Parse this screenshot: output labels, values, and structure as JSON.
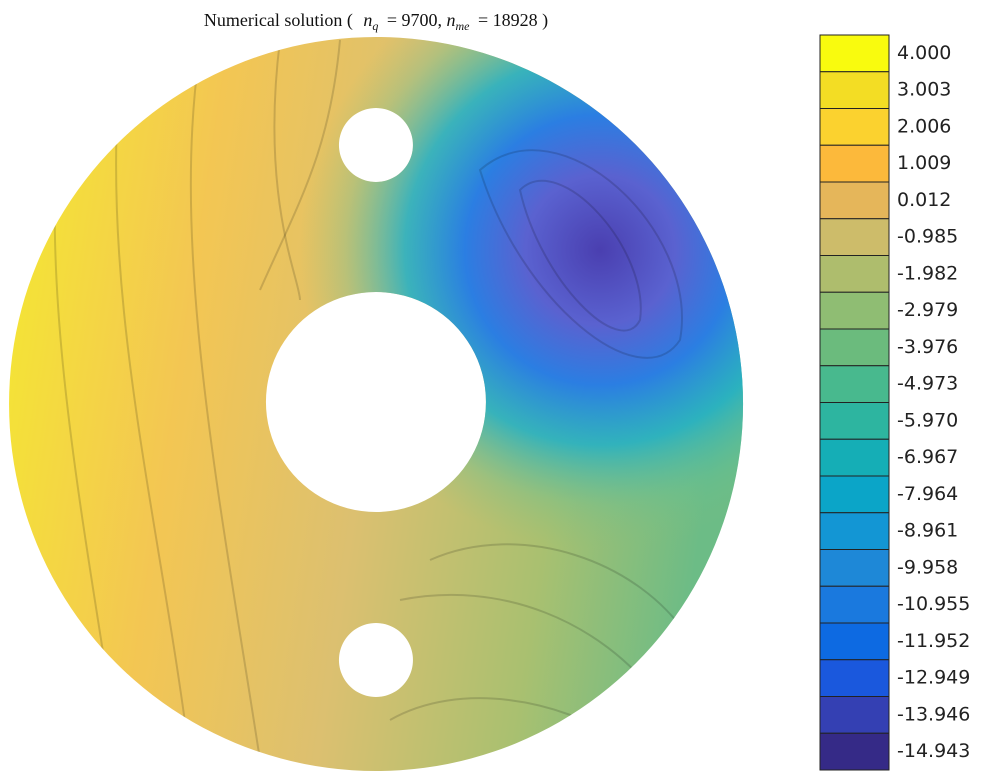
{
  "chart_data": {
    "type": "contour",
    "title_parts": [
      "Numerical solution (",
      "n",
      "q",
      "= 9700,",
      "n",
      "me",
      "= 18928 )"
    ],
    "colorbar": {
      "ticks": [
        {
          "value": 4.0,
          "label": "4.000"
        },
        {
          "value": 3.003,
          "label": "3.003"
        },
        {
          "value": 2.006,
          "label": "2.006"
        },
        {
          "value": 1.009,
          "label": "1.009"
        },
        {
          "value": 0.012,
          "label": "0.012"
        },
        {
          "value": -0.985,
          "label": "-0.985"
        },
        {
          "value": -1.982,
          "label": "-1.982"
        },
        {
          "value": -2.979,
          "label": "-2.979"
        },
        {
          "value": -3.976,
          "label": "-3.976"
        },
        {
          "value": -4.973,
          "label": "-4.973"
        },
        {
          "value": -5.97,
          "label": "-5.970"
        },
        {
          "value": -6.967,
          "label": "-6.967"
        },
        {
          "value": -7.964,
          "label": "-7.964"
        },
        {
          "value": -8.961,
          "label": "-8.961"
        },
        {
          "value": -9.958,
          "label": "-9.958"
        },
        {
          "value": -10.955,
          "label": "-10.955"
        },
        {
          "value": -11.952,
          "label": "-11.952"
        },
        {
          "value": -12.949,
          "label": "-12.949"
        },
        {
          "value": -13.946,
          "label": "-13.946"
        },
        {
          "value": -14.943,
          "label": "-14.943"
        }
      ],
      "colors": [
        "#f9fb0e",
        "#f3dd24",
        "#fbd22f",
        "#fcb93b",
        "#e5b65a",
        "#cdbc6a",
        "#aebd6d",
        "#8fbd73",
        "#6bbb7d",
        "#48b98e",
        "#2db5a0",
        "#15aeb6",
        "#0ba5c8",
        "#1396d4",
        "#1e88d7",
        "#1a79de",
        "#0d6ae2",
        "#1a58dd",
        "#3440b3",
        "#352a87"
      ]
    }
  }
}
